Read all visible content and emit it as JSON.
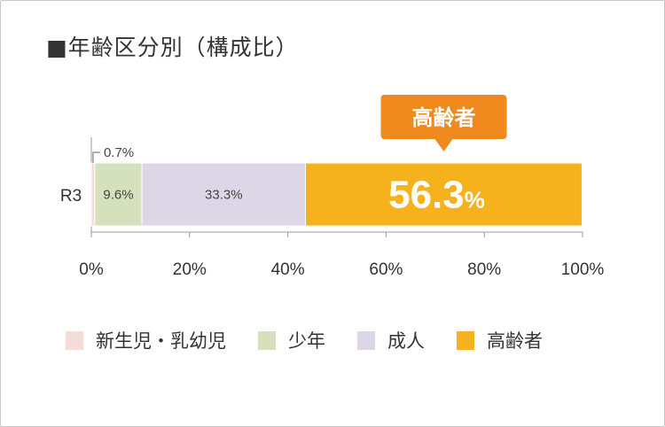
{
  "title": "■年齢区分別（構成比）",
  "chart_data": {
    "type": "bar",
    "orientation": "horizontal",
    "stacked": true,
    "categories": [
      "R3"
    ],
    "series": [
      {
        "name": "新生児・乳幼児",
        "values": [
          0.7
        ],
        "label": "0.7%",
        "color": "#f6dcd6"
      },
      {
        "name": "少年",
        "values": [
          9.6
        ],
        "label": "9.6%",
        "color": "#d4e1bc"
      },
      {
        "name": "成人",
        "values": [
          33.3
        ],
        "label": "33.3%",
        "color": "#ddd6e6"
      },
      {
        "name": "高齢者",
        "values": [
          56.3
        ],
        "label_number": "56.3",
        "label_unit": "%",
        "color": "#f5b21c"
      }
    ],
    "xlim": [
      0,
      100
    ],
    "x_ticks": [
      "0%",
      "20%",
      "40%",
      "60%",
      "80%",
      "100%"
    ],
    "legend_position": "bottom",
    "callout": {
      "text": "高齢者",
      "color": "#f08a1e"
    }
  }
}
